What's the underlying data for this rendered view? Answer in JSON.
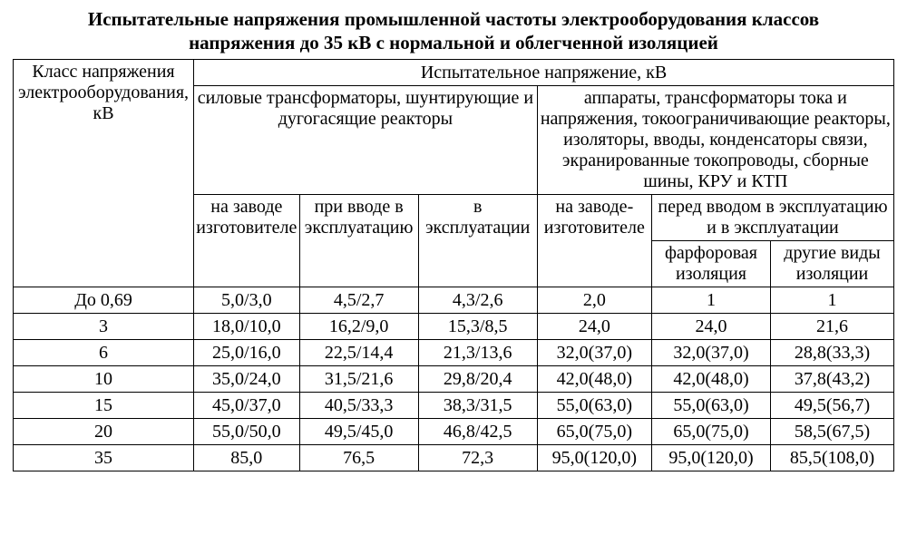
{
  "title_line1": "Испытательные напряжения промышленной частоты электрооборудования классов",
  "title_line2": "напряжения до 35 кВ с нормальной и облегченной изоляцией",
  "table": {
    "header": {
      "col0": "Класс напряжения электрооборудования, кВ",
      "main": "Испытательное напряжение, кВ",
      "group_left": "силовые трансформаторы, шунтирующие и дугогасящие реакторы",
      "group_right": "аппараты, трансформаторы тока и напряжения, токоограничивающие реакторы, изоляторы, вводы, конденсаторы связи, экранированные токопроводы, сборные шины, КРУ и КТП",
      "sub_c1": "на заводе изготовителе",
      "sub_c2": "при вводе в эксплуатацию",
      "sub_c3": "в эксплуатации",
      "sub_c4": "на заводе-изготовителе",
      "sub_c56": "перед вводом в эксплуатацию и в эксплуатации",
      "sub_c5": "фарфоровая изоляция",
      "sub_c6": "другие виды изоляции"
    },
    "rows": [
      {
        "class": "До 0,69",
        "c1": "5,0/3,0",
        "c2": "4,5/2,7",
        "c3": "4,3/2,6",
        "c4": "2,0",
        "c5": "1",
        "c6": "1"
      },
      {
        "class": "3",
        "c1": "18,0/10,0",
        "c2": "16,2/9,0",
        "c3": "15,3/8,5",
        "c4": "24,0",
        "c5": "24,0",
        "c6": "21,6"
      },
      {
        "class": "6",
        "c1": "25,0/16,0",
        "c2": "22,5/14,4",
        "c3": "21,3/13,6",
        "c4": "32,0(37,0)",
        "c5": "32,0(37,0)",
        "c6": "28,8(33,3)"
      },
      {
        "class": "10",
        "c1": "35,0/24,0",
        "c2": "31,5/21,6",
        "c3": "29,8/20,4",
        "c4": "42,0(48,0)",
        "c5": "42,0(48,0)",
        "c6": "37,8(43,2)"
      },
      {
        "class": "15",
        "c1": "45,0/37,0",
        "c2": "40,5/33,3",
        "c3": "38,3/31,5",
        "c4": "55,0(63,0)",
        "c5": "55,0(63,0)",
        "c6": "49,5(56,7)"
      },
      {
        "class": "20",
        "c1": "55,0/50,0",
        "c2": "49,5/45,0",
        "c3": "46,8/42,5",
        "c4": "65,0(75,0)",
        "c5": "65,0(75,0)",
        "c6": "58,5(67,5)"
      },
      {
        "class": "35",
        "c1": "85,0",
        "c2": "76,5",
        "c3": "72,3",
        "c4": "95,0(120,0)",
        "c5": "95,0(120,0)",
        "c6": "85,5(108,0)"
      }
    ]
  }
}
